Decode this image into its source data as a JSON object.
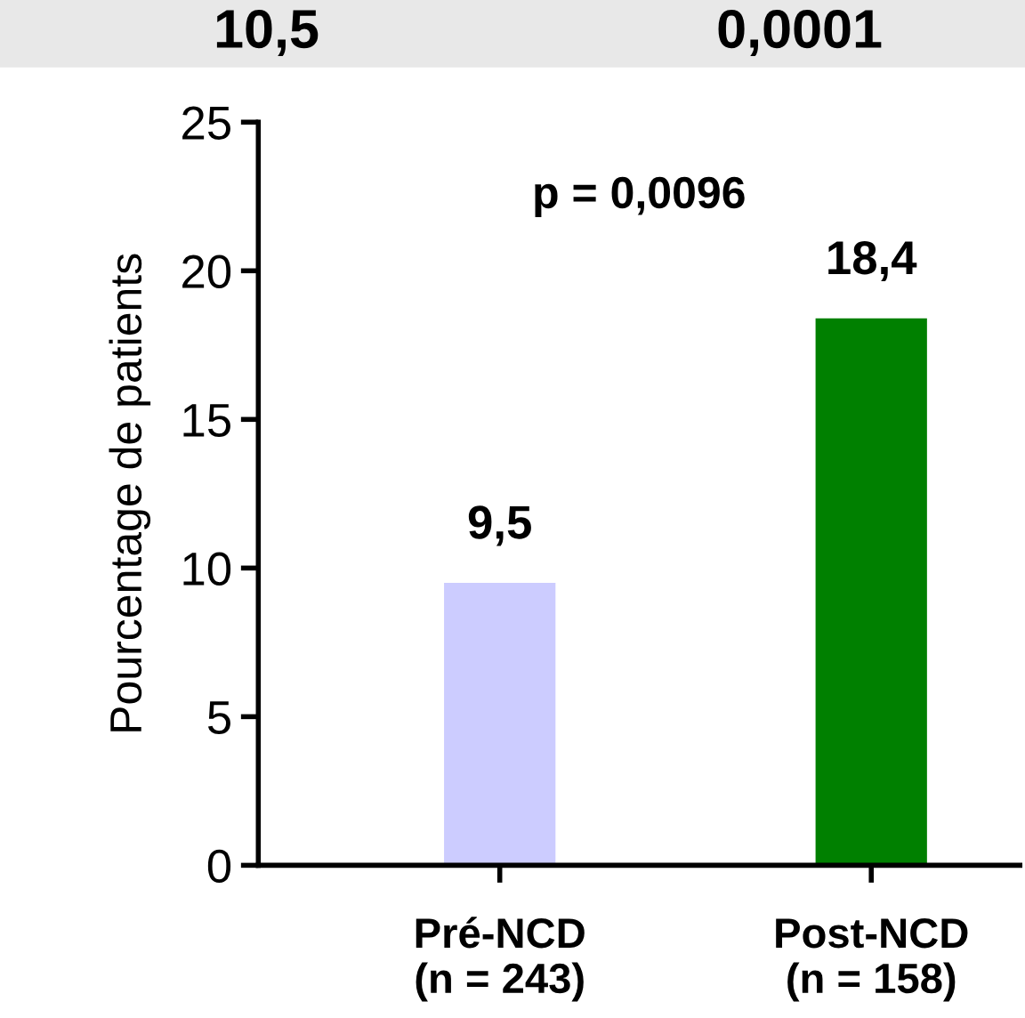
{
  "chart_data": {
    "type": "bar",
    "ylabel": "Pourcentage de patients",
    "categories": [
      "Pré-NCD\n(n = 243)",
      "Post-NCD\n(n = 158)"
    ],
    "values": [
      9.5,
      18.4
    ],
    "colors": [
      "#ccccff",
      "#008000"
    ],
    "value_labels": [
      "9,5",
      "18,4"
    ],
    "ylim": [
      0,
      25
    ],
    "yticks": [
      0,
      5,
      10,
      15,
      20,
      25
    ],
    "annotations": [
      "p = 0,0096",
      "10,5",
      "0,0001"
    ],
    "grid": false,
    "legend": false
  }
}
